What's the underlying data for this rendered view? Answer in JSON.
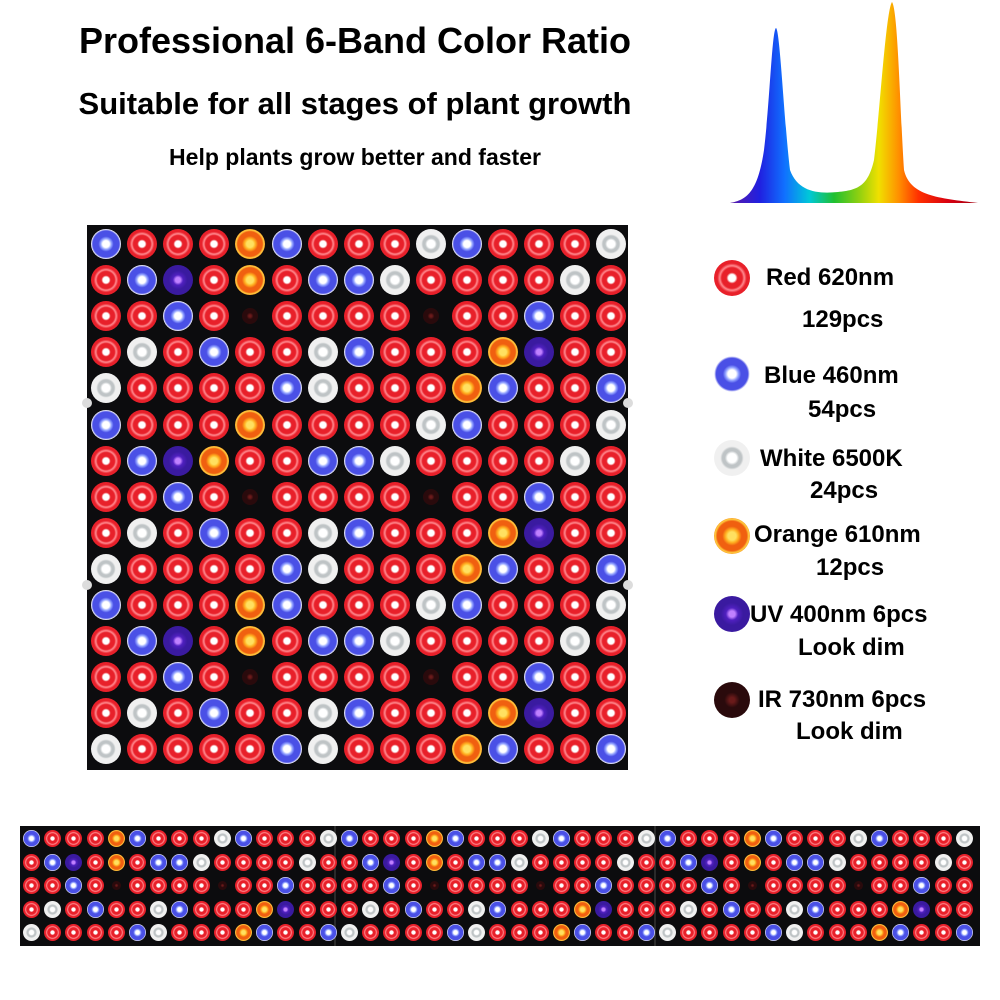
{
  "header": {
    "title": "Professional 6-Band Color Ratio",
    "subtitle": "Suitable for all stages of plant growth",
    "tagline": "Help plants grow better and faster"
  },
  "legend": [
    {
      "icon": "red-led-icon",
      "name": "Red  620nm",
      "qty": "129pcs",
      "color": "#e8202a"
    },
    {
      "icon": "blue-led-icon",
      "name": "Blue 460nm",
      "qty": "54pcs",
      "color": "#4a50e6"
    },
    {
      "icon": "white-led-icon",
      "name": "White 6500K",
      "qty": "24pcs",
      "color": "#f0f0f0"
    },
    {
      "icon": "orange-led-icon",
      "name": "Orange 610nm",
      "qty": "12pcs",
      "color": "#f06010"
    },
    {
      "icon": "uv-led-icon",
      "name": "UV 400nm 6pcs",
      "qty": "Look dim",
      "color": "#3a1aa0"
    },
    {
      "icon": "ir-led-icon",
      "name": "IR 730nm 6pcs",
      "qty": "Look dim",
      "color": "#2a0a0c"
    }
  ],
  "colors": {
    "red": "#e8202a",
    "blue": "#4a50e6",
    "white": "#f0f0f0",
    "orange": "#f06010",
    "uv": "#3a1aa0",
    "ir": "#2a0a0c",
    "panel": "#0c0c0e"
  },
  "panel_rows": [
    "BRRROBRRRWBRRRW",
    "RBURORBBWRRRRWR",
    "RRBRIRRRRIRRBRR",
    "RWRBRRWBRRROURR",
    "WRRRRBWRRROBRRB",
    "BRRRORRRRWBRRRW",
    "RBUORRBBWRRRRWR",
    "RRBRIRRRRIRRBRR",
    "RWRBRRWBRRROURR",
    "WRRRRBWRRROBRRB",
    "BRRROBRRRWBRRRW",
    "RBURORBBWRRRRWR",
    "RRBRIRRRRIRRBRR",
    "RWRBRRWBRRROURR",
    "WRRRRBWRRROBRRB"
  ],
  "strip_rows": [
    "BRRROBRRRWBRRRWBRRROBRRRWBRRRWBRRROBRRRWBRRRW",
    "RBURORBBWRRRRWRRBURORBBWRRRRWRRBURORBBWRRRRWR",
    "RRBRIRRRRIRRBRRRRBRIRRRRIRRBRRRRBRIRRRRIRRBRR",
    "RWRBRRWBRRROURRRWRBRRWBRRROURRRWRBRRWBRRROURR",
    "WRRRRBWRRROBRRBWRRRRBWRRROBRRBWRRRRBWRRROBRRB"
  ]
}
